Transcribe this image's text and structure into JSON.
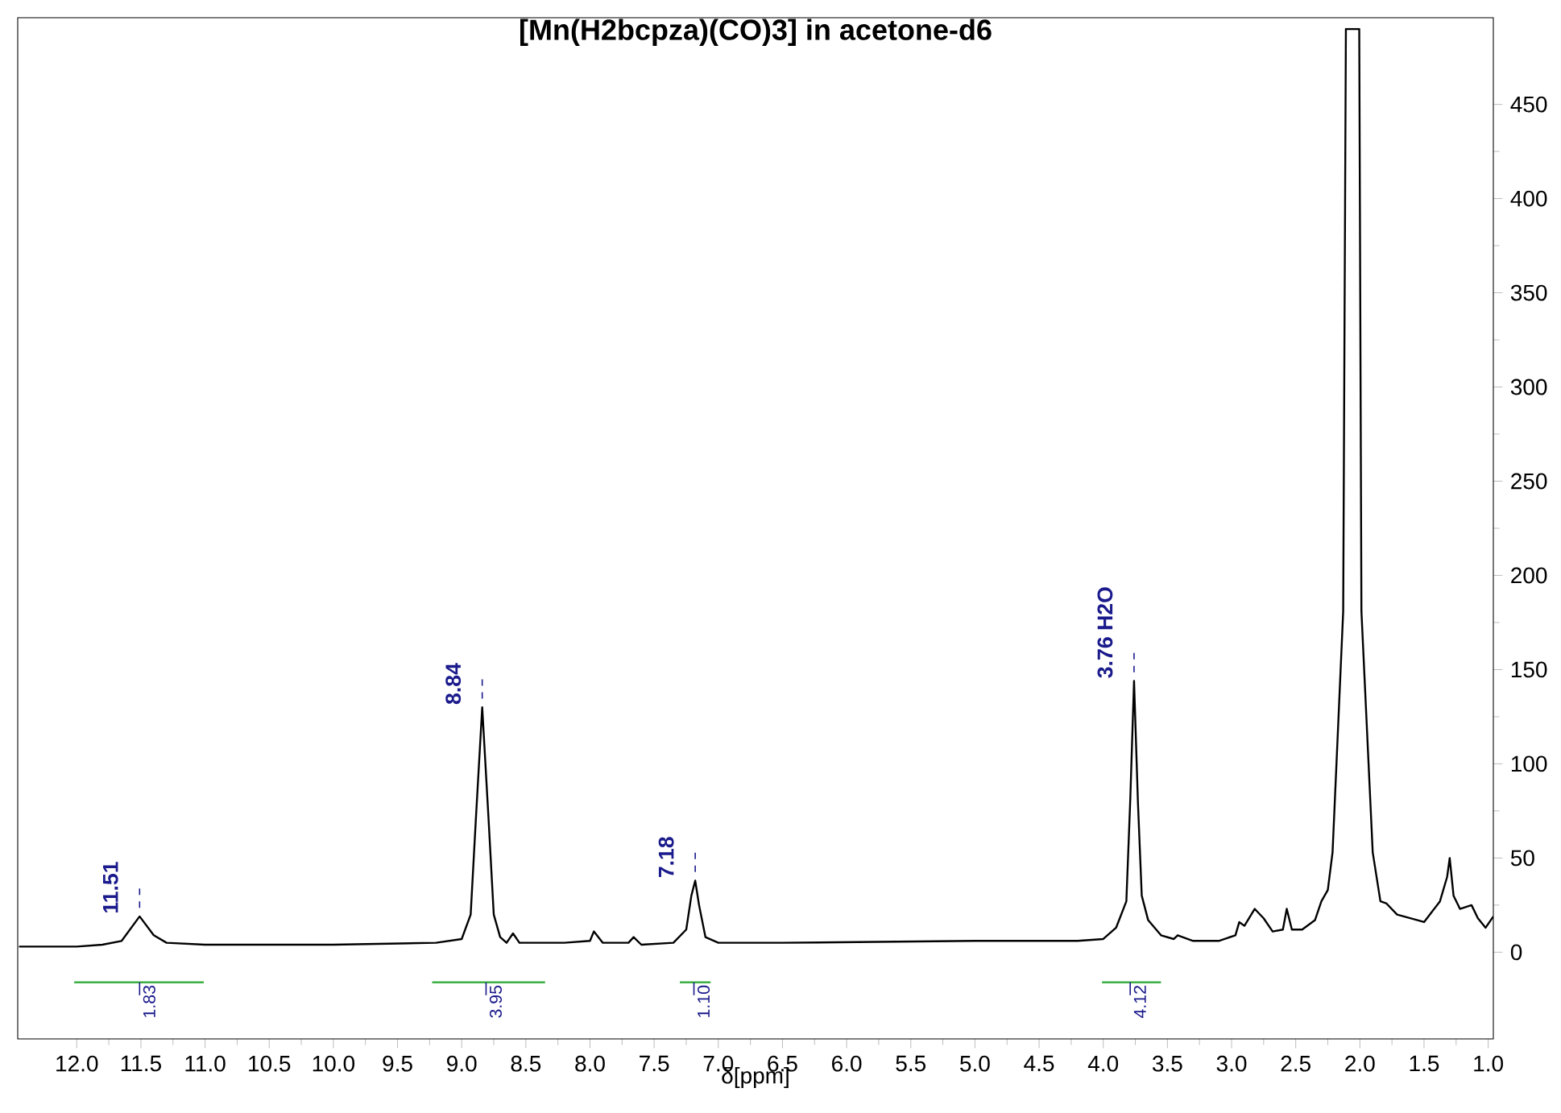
{
  "chart_data": {
    "type": "line",
    "title": "[Mn(H2bcpza)(CO)3] in acetone-d6",
    "xlabel": "δ[ppm]",
    "xlim": [
      12.46,
      0.96
    ],
    "ylim": [
      -46,
      496
    ],
    "xticks": [
      {
        "value": 12,
        "label": "12.0"
      },
      {
        "value": 11.5,
        "label": "11.5"
      },
      {
        "value": 11,
        "label": "11.0"
      },
      {
        "value": 10.5,
        "label": "10.5"
      },
      {
        "value": 10,
        "label": "10.0"
      },
      {
        "value": 9.5,
        "label": "9.5"
      },
      {
        "value": 9,
        "label": "9.0"
      },
      {
        "value": 8.5,
        "label": "8.5"
      },
      {
        "value": 8,
        "label": "8.0"
      },
      {
        "value": 7.5,
        "label": "7.5"
      },
      {
        "value": 7,
        "label": "7.0"
      },
      {
        "value": 6.5,
        "label": "6.5"
      },
      {
        "value": 6,
        "label": "6.0"
      },
      {
        "value": 5.5,
        "label": "5.5"
      },
      {
        "value": 5,
        "label": "5.0"
      },
      {
        "value": 4.5,
        "label": "4.5"
      },
      {
        "value": 4,
        "label": "4.0"
      },
      {
        "value": 3.5,
        "label": "3.5"
      },
      {
        "value": 3,
        "label": "3.0"
      },
      {
        "value": 2.5,
        "label": "2.5"
      },
      {
        "value": 2,
        "label": "2.0"
      },
      {
        "value": 1.5,
        "label": "1.5"
      },
      {
        "value": 1,
        "label": "1.0"
      }
    ],
    "yticks": [
      0,
      50,
      100,
      150,
      200,
      250,
      300,
      350,
      400,
      450
    ],
    "series": [
      {
        "color": "#000000",
        "x": [
          12.45,
          12.0,
          11.8,
          11.65,
          11.51,
          11.4,
          11.3,
          11.0,
          10.0,
          9.2,
          9.0,
          8.93,
          8.89,
          8.84,
          8.79,
          8.75,
          8.7,
          8.65,
          8.6,
          8.55,
          8.2,
          8.0,
          7.97,
          7.9,
          7.7,
          7.66,
          7.6,
          7.35,
          7.25,
          7.21,
          7.18,
          7.15,
          7.1,
          7.0,
          6.5,
          5.0,
          4.2,
          4.0,
          3.9,
          3.82,
          3.79,
          3.76,
          3.73,
          3.7,
          3.65,
          3.55,
          3.45,
          3.42,
          3.3,
          3.1,
          2.97,
          2.94,
          2.9,
          2.82,
          2.75,
          2.68,
          2.6,
          2.57,
          2.53,
          2.45,
          2.35,
          2.3,
          2.25,
          2.213,
          2.13,
          2.109,
          2.005,
          1.988,
          1.9,
          1.84,
          1.795,
          1.71,
          1.55,
          1.5,
          1.376,
          1.32,
          1.3,
          1.27,
          1.22,
          1.13,
          1.08,
          1.02,
          0.96
        ],
        "values": [
          3,
          3,
          4,
          6,
          19,
          9,
          5,
          4,
          4,
          5,
          7,
          20,
          70,
          130,
          70,
          20,
          8,
          5,
          10,
          5,
          5,
          6,
          11,
          5,
          5,
          8,
          4,
          5,
          12,
          30,
          38,
          25,
          8,
          5,
          5,
          6,
          6,
          7,
          13,
          27,
          80,
          144,
          80,
          30,
          17,
          9,
          7,
          9,
          6,
          6,
          9,
          16,
          14,
          23,
          18,
          11,
          12,
          23,
          12,
          12,
          17,
          27,
          33,
          53,
          181,
          490,
          490,
          181,
          53,
          27,
          26,
          20,
          17,
          16,
          27,
          40,
          50,
          30,
          23,
          25,
          18,
          13,
          19
        ]
      },
      {
        "color": "#3cb043",
        "x": [
          12.02,
          11.01
        ],
        "values": [
          -16,
          -16
        ]
      },
      {
        "color": "#3cb043",
        "x": [
          9.23,
          8.35
        ],
        "values": [
          -16,
          -16
        ]
      },
      {
        "color": "#3cb043",
        "x": [
          7.3,
          7.06
        ],
        "values": [
          -16,
          -16
        ]
      },
      {
        "color": "#3cb043",
        "x": [
          4.01,
          3.55
        ],
        "values": [
          -16,
          -16
        ]
      }
    ],
    "annotations": [
      {
        "text": "11.51",
        "x": 11.51,
        "y": 19
      },
      {
        "text": "8.84",
        "x": 8.84,
        "y": 130
      },
      {
        "text": "7.18",
        "x": 7.18,
        "y": 38
      },
      {
        "text": "3.76 H2O",
        "x": 3.76,
        "y": 144
      },
      {
        "text": "1.83",
        "x": 11.51,
        "y": -16
      },
      {
        "text": "3.95",
        "x": 8.81,
        "y": -16
      },
      {
        "text": "1.10",
        "x": 7.19,
        "y": -16
      },
      {
        "text": "4.12",
        "x": 3.79,
        "y": -16
      }
    ]
  }
}
